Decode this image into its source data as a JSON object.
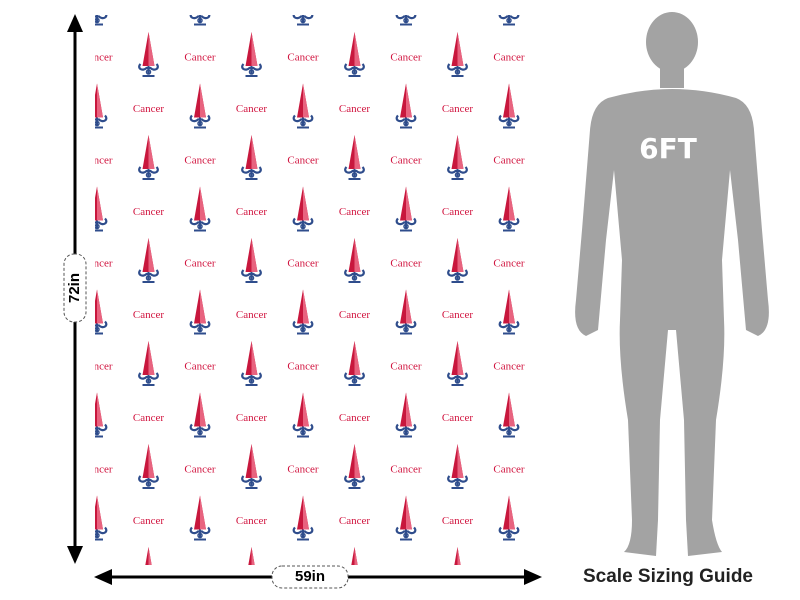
{
  "pattern_label": "Cancer",
  "height_label": "72in",
  "width_label": "59in",
  "figure_label": "6FT",
  "guide_title": "Scale Sizing Guide"
}
